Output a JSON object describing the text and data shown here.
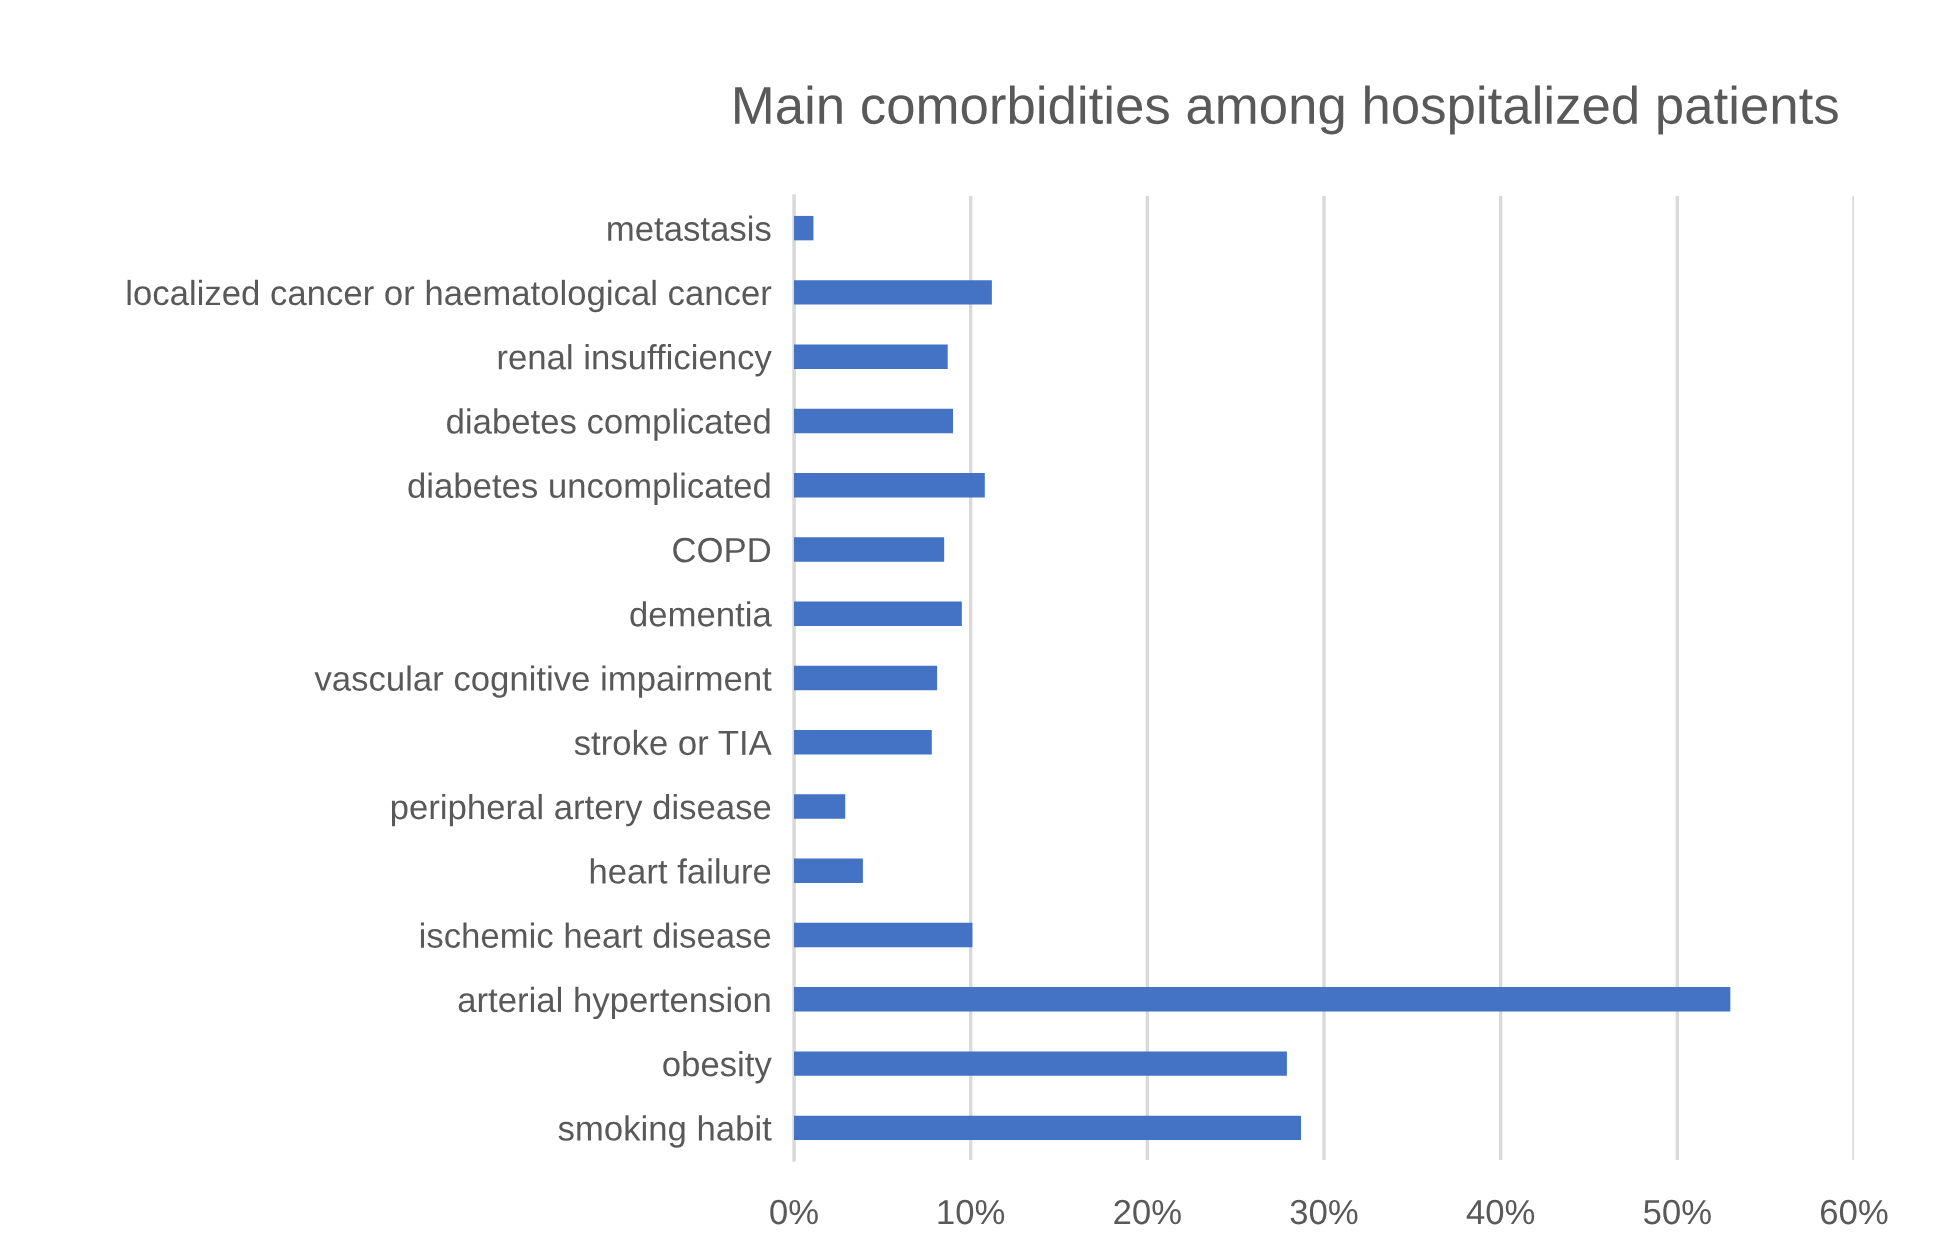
{
  "chart_data": {
    "type": "bar",
    "orientation": "horizontal",
    "title": "Main comorbidities among hospitalized patients",
    "categories": [
      "metastasis",
      "localized cancer or haematological cancer",
      "renal insufficiency",
      "diabetes complicated",
      "diabetes uncomplicated",
      "COPD",
      "dementia",
      "vascular cognitive impairment",
      "stroke or TIA",
      "peripheral artery disease",
      "heart failure",
      "ischemic heart disease",
      "arterial hypertension",
      "obesity",
      "smoking habit"
    ],
    "values": [
      1.1,
      11.2,
      8.7,
      9.0,
      10.8,
      8.5,
      9.5,
      8.1,
      7.8,
      2.9,
      3.9,
      10.1,
      53.0,
      27.9,
      28.7
    ],
    "color": "#4472c4",
    "xlim": [
      0,
      60
    ],
    "xticks": [
      {
        "value": 0,
        "label": "0%"
      },
      {
        "value": 10,
        "label": "10%"
      },
      {
        "value": 20,
        "label": "20%"
      },
      {
        "value": 30,
        "label": "30%"
      },
      {
        "value": 40,
        "label": "40%"
      },
      {
        "value": 50,
        "label": "50%"
      },
      {
        "value": 60,
        "label": "60%"
      }
    ],
    "grid": "x",
    "legend": false
  }
}
